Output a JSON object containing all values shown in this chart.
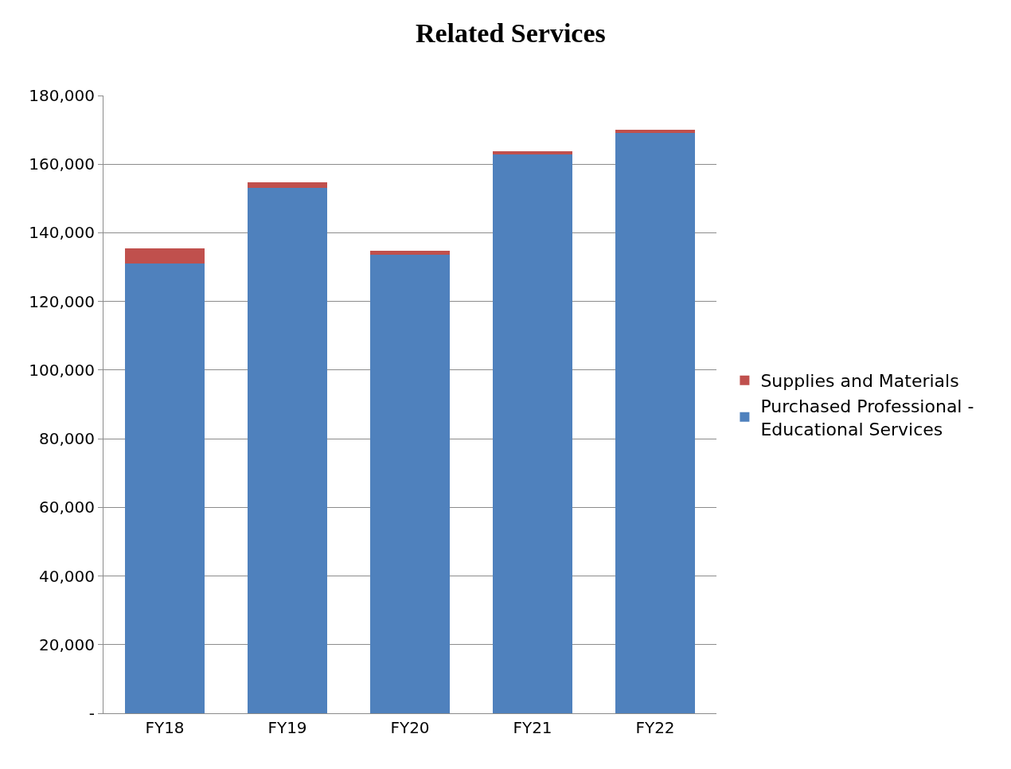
{
  "chart_data": {
    "type": "bar",
    "title": "Related Services",
    "categories": [
      "FY18",
      "FY19",
      "FY20",
      "FY21",
      "FY22"
    ],
    "stacked": true,
    "series": [
      {
        "name": "Purchased Professional - Educational Services",
        "color": "#4f81bd",
        "values": [
          131000,
          153000,
          133500,
          162800,
          169000
        ]
      },
      {
        "name": "Supplies and Materials",
        "color": "#c0504d",
        "values": [
          4400,
          1700,
          1200,
          1000,
          1000
        ]
      }
    ],
    "ylim": [
      0,
      180000
    ],
    "yticks": [
      {
        "value": 0,
        "label": "-"
      },
      {
        "value": 20000,
        "label": "20,000"
      },
      {
        "value": 40000,
        "label": "40,000"
      },
      {
        "value": 60000,
        "label": "60,000"
      },
      {
        "value": 80000,
        "label": "80,000"
      },
      {
        "value": 100000,
        "label": "100,000"
      },
      {
        "value": 120000,
        "label": "120,000"
      },
      {
        "value": 140000,
        "label": "140,000"
      },
      {
        "value": 160000,
        "label": "160,000"
      },
      {
        "value": 180000,
        "label": "180,000"
      }
    ],
    "grid": "y",
    "legend": "right"
  }
}
